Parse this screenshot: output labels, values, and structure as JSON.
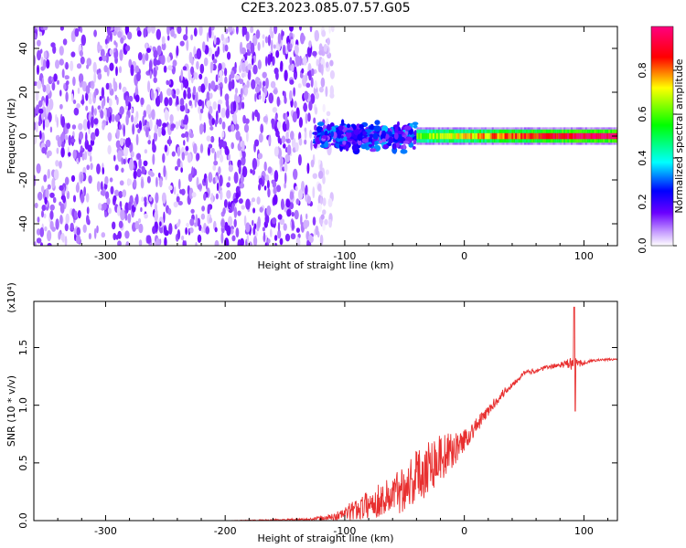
{
  "title": "C2E3.2023.085.07.57.G05",
  "chart_data": [
    {
      "type": "heatmap",
      "title": "C2E3.2023.085.07.57.G05",
      "xlabel": "Height of straight line (km)",
      "ylabel": "Frequency (Hz)",
      "xlim": [
        -360,
        128
      ],
      "ylim": [
        -50,
        50
      ],
      "x_ticks": [
        -300,
        -200,
        -100,
        0,
        100
      ],
      "y_ticks": [
        -40,
        -20,
        0,
        20,
        40
      ],
      "colorbar": {
        "label": "Normalized spectral amplitude",
        "range": [
          0,
          1
        ],
        "ticks": [
          0.0,
          0.2,
          0.4,
          0.6,
          0.8
        ],
        "colormap": [
          "#ffffff",
          "#c8a0ff",
          "#6a00ff",
          "#0000ff",
          "#00ffff",
          "#00ff00",
          "#ffff00",
          "#ff0000",
          "#ff0080"
        ]
      },
      "regions": [
        {
          "x_range": [
            -360,
            -125
          ],
          "freq_range": [
            -50,
            50
          ],
          "amplitude_range": [
            0.0,
            0.15
          ],
          "pattern": "broadband noise"
        },
        {
          "x_range": [
            -125,
            -40
          ],
          "freq_range": [
            -8,
            8
          ],
          "amplitude_range": [
            0.1,
            0.35
          ],
          "pattern": "scattered signal"
        },
        {
          "x_range": [
            -40,
            128
          ],
          "freq_range": [
            -3,
            3
          ],
          "amplitude_range": [
            0.3,
            1.0
          ],
          "pattern": "coherent carrier band near 0 Hz"
        }
      ]
    },
    {
      "type": "line",
      "xlabel": "Height of straight line (km)",
      "ylabel": "SNR (10 * v/v)",
      "y_scale_label": "(x10⁴)",
      "xlim": [
        -360,
        128
      ],
      "ylim": [
        0,
        1.9
      ],
      "x_ticks": [
        -300,
        -200,
        -100,
        0,
        100
      ],
      "y_ticks": [
        0.0,
        0.5,
        1.0,
        1.5
      ],
      "series": [
        {
          "color": "#e83030",
          "x": [
            -360,
            -300,
            -200,
            -130,
            -110,
            -100,
            -90,
            -80,
            -70,
            -60,
            -50,
            -40,
            -30,
            -20,
            -10,
            0,
            10,
            20,
            30,
            40,
            50,
            60,
            70,
            80,
            90,
            100,
            110,
            128
          ],
          "values": [
            0.0,
            0.0,
            0.0,
            0.01,
            0.03,
            0.06,
            0.1,
            0.14,
            0.18,
            0.22,
            0.3,
            0.38,
            0.48,
            0.55,
            0.6,
            0.7,
            0.82,
            0.95,
            1.08,
            1.18,
            1.28,
            1.3,
            1.33,
            1.35,
            1.36,
            1.37,
            1.39,
            1.4
          ],
          "noise": [
            0.0,
            0.0,
            0.0,
            0.01,
            0.03,
            0.06,
            0.1,
            0.12,
            0.15,
            0.18,
            0.22,
            0.25,
            0.25,
            0.22,
            0.15,
            0.1,
            0.07,
            0.05,
            0.04,
            0.03,
            0.02,
            0.02,
            0.02,
            0.02,
            0.06,
            0.02,
            0.01,
            0.01
          ],
          "spike": {
            "x": 92,
            "y_max": 1.85,
            "y_min": 0.95
          }
        }
      ]
    }
  ]
}
